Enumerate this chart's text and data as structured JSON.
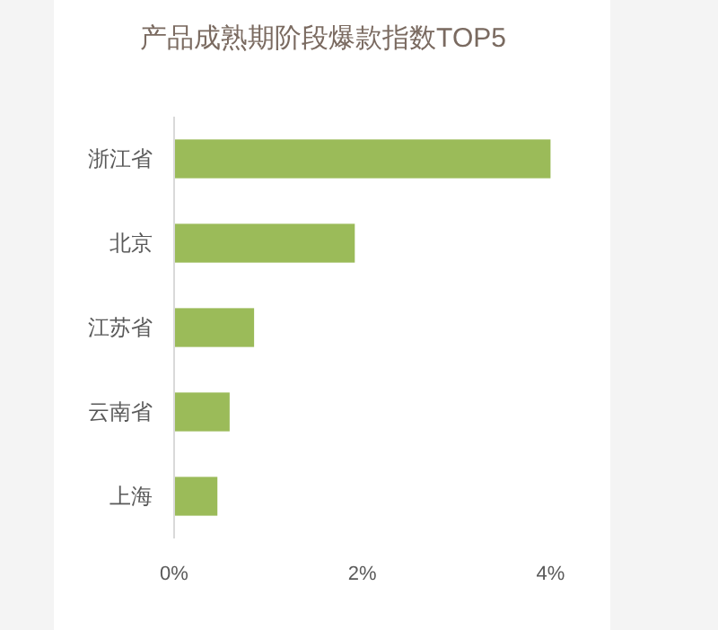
{
  "chart_data": {
    "type": "bar",
    "orientation": "horizontal",
    "title": "产品成熟期阶段爆款指数TOP5",
    "categories": [
      "浙江省",
      "北京",
      "江苏省",
      "云南省",
      "上海"
    ],
    "values": [
      4.0,
      1.92,
      0.85,
      0.59,
      0.46
    ],
    "color": "#9bbb59",
    "xlim": [
      0,
      4
    ],
    "xticks": [
      {
        "value": 0,
        "label": "0%"
      },
      {
        "value": 2,
        "label": "2%"
      },
      {
        "value": 4,
        "label": "4%"
      }
    ],
    "grid": false
  }
}
